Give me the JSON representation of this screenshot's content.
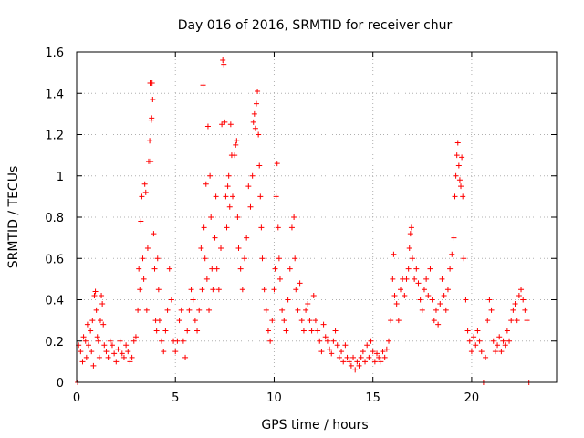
{
  "chart_data": {
    "type": "scatter",
    "title": "Day 016 of 2016, SRMTID for receiver chur",
    "xlabel": "GPS time / hours",
    "ylabel": "SRMTID / TECUs",
    "xlim": [
      0,
      24.3
    ],
    "ylim": [
      0,
      1.6
    ],
    "xticks": [
      0,
      5,
      10,
      15,
      20
    ],
    "xtick_labels": [
      "0",
      "5",
      "10",
      "15",
      "20"
    ],
    "yticks": [
      0,
      0.2,
      0.4,
      0.6,
      0.8,
      1,
      1.2,
      1.4,
      1.6
    ],
    "ytick_labels": [
      "0",
      "0.2",
      "0.4",
      "0.6",
      "0.8",
      "1",
      "1.2",
      "1.4",
      "1.6"
    ],
    "grid": true,
    "marker": "plus",
    "series": [
      {
        "name": "SRMTID",
        "color": "#ff0000",
        "points": [
          [
            0.05,
            0.0
          ],
          [
            0.1,
            0.18
          ],
          [
            0.2,
            0.15
          ],
          [
            0.3,
            0.1
          ],
          [
            0.35,
            0.22
          ],
          [
            0.45,
            0.2
          ],
          [
            0.5,
            0.12
          ],
          [
            0.55,
            0.28
          ],
          [
            0.6,
            0.18
          ],
          [
            0.7,
            0.25
          ],
          [
            0.75,
            0.15
          ],
          [
            0.8,
            0.3
          ],
          [
            0.85,
            0.08
          ],
          [
            0.9,
            0.42
          ],
          [
            0.95,
            0.44
          ],
          [
            1.0,
            0.35
          ],
          [
            1.05,
            0.22
          ],
          [
            1.1,
            0.2
          ],
          [
            1.15,
            0.12
          ],
          [
            1.2,
            0.3
          ],
          [
            1.25,
            0.42
          ],
          [
            1.3,
            0.38
          ],
          [
            1.35,
            0.28
          ],
          [
            1.4,
            0.18
          ],
          [
            1.5,
            0.15
          ],
          [
            1.6,
            0.12
          ],
          [
            1.7,
            0.2
          ],
          [
            1.8,
            0.18
          ],
          [
            1.9,
            0.14
          ],
          [
            2.0,
            0.1
          ],
          [
            2.1,
            0.16
          ],
          [
            2.2,
            0.2
          ],
          [
            2.3,
            0.14
          ],
          [
            2.4,
            0.12
          ],
          [
            2.5,
            0.18
          ],
          [
            2.6,
            0.15
          ],
          [
            2.7,
            0.1
          ],
          [
            2.8,
            0.12
          ],
          [
            2.9,
            0.2
          ],
          [
            3.0,
            0.22
          ],
          [
            3.1,
            0.35
          ],
          [
            3.15,
            0.55
          ],
          [
            3.2,
            0.45
          ],
          [
            3.25,
            0.78
          ],
          [
            3.3,
            0.9
          ],
          [
            3.35,
            0.6
          ],
          [
            3.4,
            0.5
          ],
          [
            3.45,
            0.96
          ],
          [
            3.5,
            0.92
          ],
          [
            3.55,
            0.35
          ],
          [
            3.6,
            0.65
          ],
          [
            3.65,
            1.07
          ],
          [
            3.7,
            1.17
          ],
          [
            3.72,
            1.45
          ],
          [
            3.75,
            1.07
          ],
          [
            3.78,
            1.27
          ],
          [
            3.8,
            1.28
          ],
          [
            3.82,
            1.45
          ],
          [
            3.85,
            1.37
          ],
          [
            3.9,
            0.72
          ],
          [
            3.95,
            0.55
          ],
          [
            4.0,
            0.3
          ],
          [
            4.05,
            0.25
          ],
          [
            4.1,
            0.6
          ],
          [
            4.15,
            0.45
          ],
          [
            4.2,
            0.3
          ],
          [
            4.3,
            0.2
          ],
          [
            4.4,
            0.15
          ],
          [
            4.5,
            0.25
          ],
          [
            4.6,
            0.35
          ],
          [
            4.7,
            0.55
          ],
          [
            4.8,
            0.4
          ],
          [
            4.9,
            0.2
          ],
          [
            5.0,
            0.15
          ],
          [
            5.1,
            0.2
          ],
          [
            5.2,
            0.3
          ],
          [
            5.3,
            0.35
          ],
          [
            5.4,
            0.2
          ],
          [
            5.5,
            0.12
          ],
          [
            5.6,
            0.25
          ],
          [
            5.7,
            0.35
          ],
          [
            5.8,
            0.45
          ],
          [
            5.9,
            0.4
          ],
          [
            6.0,
            0.3
          ],
          [
            6.1,
            0.25
          ],
          [
            6.2,
            0.35
          ],
          [
            6.3,
            0.65
          ],
          [
            6.35,
            0.45
          ],
          [
            6.4,
            1.44
          ],
          [
            6.45,
            0.75
          ],
          [
            6.5,
            0.6
          ],
          [
            6.55,
            0.96
          ],
          [
            6.6,
            0.5
          ],
          [
            6.65,
            1.24
          ],
          [
            6.7,
            0.35
          ],
          [
            6.75,
            1.0
          ],
          [
            6.8,
            0.8
          ],
          [
            6.85,
            0.55
          ],
          [
            6.9,
            0.45
          ],
          [
            7.0,
            0.7
          ],
          [
            7.05,
            0.9
          ],
          [
            7.1,
            0.55
          ],
          [
            7.2,
            0.45
          ],
          [
            7.3,
            0.65
          ],
          [
            7.35,
            1.25
          ],
          [
            7.4,
            1.56
          ],
          [
            7.45,
            1.54
          ],
          [
            7.5,
            1.26
          ],
          [
            7.55,
            0.9
          ],
          [
            7.6,
            0.75
          ],
          [
            7.65,
            0.95
          ],
          [
            7.7,
            1.0
          ],
          [
            7.75,
            0.85
          ],
          [
            7.8,
            1.25
          ],
          [
            7.85,
            1.1
          ],
          [
            7.9,
            0.9
          ],
          [
            8.0,
            1.1
          ],
          [
            8.05,
            1.15
          ],
          [
            8.1,
            1.17
          ],
          [
            8.15,
            0.8
          ],
          [
            8.2,
            0.65
          ],
          [
            8.3,
            0.55
          ],
          [
            8.4,
            0.45
          ],
          [
            8.5,
            0.6
          ],
          [
            8.6,
            0.7
          ],
          [
            8.7,
            0.95
          ],
          [
            8.8,
            0.85
          ],
          [
            8.9,
            1.0
          ],
          [
            8.95,
            1.26
          ],
          [
            9.0,
            1.3
          ],
          [
            9.05,
            1.23
          ],
          [
            9.1,
            1.35
          ],
          [
            9.15,
            1.41
          ],
          [
            9.2,
            1.2
          ],
          [
            9.25,
            1.05
          ],
          [
            9.3,
            0.9
          ],
          [
            9.35,
            0.75
          ],
          [
            9.4,
            0.6
          ],
          [
            9.5,
            0.45
          ],
          [
            9.6,
            0.35
          ],
          [
            9.7,
            0.25
          ],
          [
            9.8,
            0.2
          ],
          [
            9.9,
            0.3
          ],
          [
            10.0,
            0.45
          ],
          [
            10.05,
            0.55
          ],
          [
            10.1,
            0.9
          ],
          [
            10.15,
            1.06
          ],
          [
            10.2,
            0.75
          ],
          [
            10.25,
            0.6
          ],
          [
            10.3,
            0.5
          ],
          [
            10.4,
            0.35
          ],
          [
            10.5,
            0.3
          ],
          [
            10.6,
            0.25
          ],
          [
            10.7,
            0.4
          ],
          [
            10.8,
            0.55
          ],
          [
            10.9,
            0.75
          ],
          [
            11.0,
            0.8
          ],
          [
            11.05,
            0.6
          ],
          [
            11.1,
            0.45
          ],
          [
            11.2,
            0.35
          ],
          [
            11.3,
            0.48
          ],
          [
            11.4,
            0.3
          ],
          [
            11.5,
            0.25
          ],
          [
            11.6,
            0.35
          ],
          [
            11.7,
            0.38
          ],
          [
            11.8,
            0.3
          ],
          [
            11.9,
            0.25
          ],
          [
            12.0,
            0.42
          ],
          [
            12.1,
            0.3
          ],
          [
            12.2,
            0.25
          ],
          [
            12.3,
            0.2
          ],
          [
            12.4,
            0.15
          ],
          [
            12.5,
            0.28
          ],
          [
            12.6,
            0.22
          ],
          [
            12.7,
            0.2
          ],
          [
            12.8,
            0.16
          ],
          [
            12.9,
            0.14
          ],
          [
            13.0,
            0.2
          ],
          [
            13.1,
            0.25
          ],
          [
            13.2,
            0.18
          ],
          [
            13.3,
            0.12
          ],
          [
            13.4,
            0.15
          ],
          [
            13.5,
            0.1
          ],
          [
            13.6,
            0.18
          ],
          [
            13.7,
            0.12
          ],
          [
            13.8,
            0.1
          ],
          [
            13.9,
            0.08
          ],
          [
            14.0,
            0.12
          ],
          [
            14.1,
            0.06
          ],
          [
            14.2,
            0.1
          ],
          [
            14.3,
            0.08
          ],
          [
            14.4,
            0.12
          ],
          [
            14.5,
            0.15
          ],
          [
            14.6,
            0.1
          ],
          [
            14.7,
            0.18
          ],
          [
            14.8,
            0.12
          ],
          [
            14.9,
            0.2
          ],
          [
            15.0,
            0.15
          ],
          [
            15.1,
            0.1
          ],
          [
            15.2,
            0.14
          ],
          [
            15.3,
            0.12
          ],
          [
            15.4,
            0.1
          ],
          [
            15.5,
            0.15
          ],
          [
            15.6,
            0.12
          ],
          [
            15.7,
            0.16
          ],
          [
            15.8,
            0.2
          ],
          [
            15.9,
            0.3
          ],
          [
            16.0,
            0.5
          ],
          [
            16.05,
            0.62
          ],
          [
            16.1,
            0.42
          ],
          [
            16.2,
            0.38
          ],
          [
            16.3,
            0.3
          ],
          [
            16.4,
            0.45
          ],
          [
            16.5,
            0.5
          ],
          [
            16.6,
            0.42
          ],
          [
            16.7,
            0.5
          ],
          [
            16.8,
            0.55
          ],
          [
            16.85,
            0.65
          ],
          [
            16.9,
            0.72
          ],
          [
            16.95,
            0.75
          ],
          [
            17.0,
            0.6
          ],
          [
            17.1,
            0.5
          ],
          [
            17.2,
            0.55
          ],
          [
            17.3,
            0.48
          ],
          [
            17.4,
            0.4
          ],
          [
            17.5,
            0.35
          ],
          [
            17.6,
            0.45
          ],
          [
            17.7,
            0.5
          ],
          [
            17.8,
            0.42
          ],
          [
            17.9,
            0.55
          ],
          [
            18.0,
            0.4
          ],
          [
            18.1,
            0.3
          ],
          [
            18.2,
            0.35
          ],
          [
            18.3,
            0.28
          ],
          [
            18.4,
            0.38
          ],
          [
            18.5,
            0.5
          ],
          [
            18.6,
            0.42
          ],
          [
            18.7,
            0.35
          ],
          [
            18.8,
            0.45
          ],
          [
            18.9,
            0.55
          ],
          [
            19.0,
            0.62
          ],
          [
            19.1,
            0.7
          ],
          [
            19.15,
            0.9
          ],
          [
            19.2,
            1.0
          ],
          [
            19.25,
            1.1
          ],
          [
            19.3,
            1.16
          ],
          [
            19.35,
            1.05
          ],
          [
            19.4,
            0.98
          ],
          [
            19.45,
            0.95
          ],
          [
            19.5,
            1.09
          ],
          [
            19.55,
            0.9
          ],
          [
            19.6,
            0.6
          ],
          [
            19.7,
            0.4
          ],
          [
            19.8,
            0.25
          ],
          [
            19.9,
            0.2
          ],
          [
            20.0,
            0.15
          ],
          [
            20.1,
            0.22
          ],
          [
            20.2,
            0.18
          ],
          [
            20.3,
            0.25
          ],
          [
            20.4,
            0.2
          ],
          [
            20.5,
            0.15
          ],
          [
            20.6,
            0.0
          ],
          [
            20.7,
            0.12
          ],
          [
            20.8,
            0.3
          ],
          [
            20.9,
            0.4
          ],
          [
            21.0,
            0.35
          ],
          [
            21.1,
            0.2
          ],
          [
            21.2,
            0.15
          ],
          [
            21.3,
            0.18
          ],
          [
            21.4,
            0.22
          ],
          [
            21.5,
            0.15
          ],
          [
            21.6,
            0.2
          ],
          [
            21.7,
            0.18
          ],
          [
            21.8,
            0.25
          ],
          [
            21.9,
            0.2
          ],
          [
            22.0,
            0.3
          ],
          [
            22.1,
            0.35
          ],
          [
            22.2,
            0.38
          ],
          [
            22.3,
            0.3
          ],
          [
            22.4,
            0.42
          ],
          [
            22.5,
            0.45
          ],
          [
            22.6,
            0.4
          ],
          [
            22.7,
            0.35
          ],
          [
            22.8,
            0.3
          ],
          [
            22.9,
            0.0
          ]
        ]
      }
    ]
  }
}
